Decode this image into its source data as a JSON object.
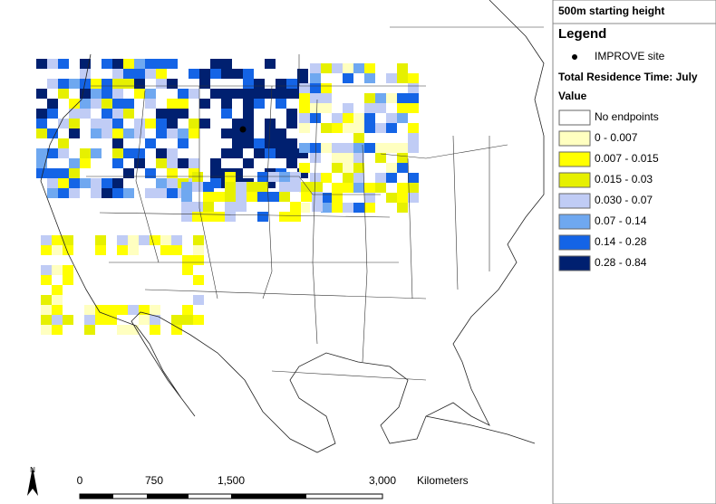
{
  "title": "500m starting height",
  "legend": {
    "title": "Legend",
    "site": "IMPROVE site",
    "heading": "Total Residence Time: July",
    "subheading": "Value",
    "items": [
      {
        "label": "No endpoints",
        "color": "#ffffff"
      },
      {
        "label": "0 - 0.007",
        "color": "#ffffc0"
      },
      {
        "label": "0.007 - 0.015",
        "color": "#ffff00"
      },
      {
        "label": "0.015 - 0.03",
        "color": "#e6f000"
      },
      {
        "label": "0.030 - 0.07",
        "color": "#c0ccf5"
      },
      {
        "label": "0.07 - 0.14",
        "color": "#6fa8f0"
      },
      {
        "label": "0.14 - 0.28",
        "color": "#1464e6"
      },
      {
        "label": "0.28 - 0.84",
        "color": "#002070"
      }
    ]
  },
  "scale": {
    "labels": [
      "0",
      "750",
      "1,500",
      "3,000"
    ],
    "unit": "Kilometers",
    "north": "N"
  }
}
